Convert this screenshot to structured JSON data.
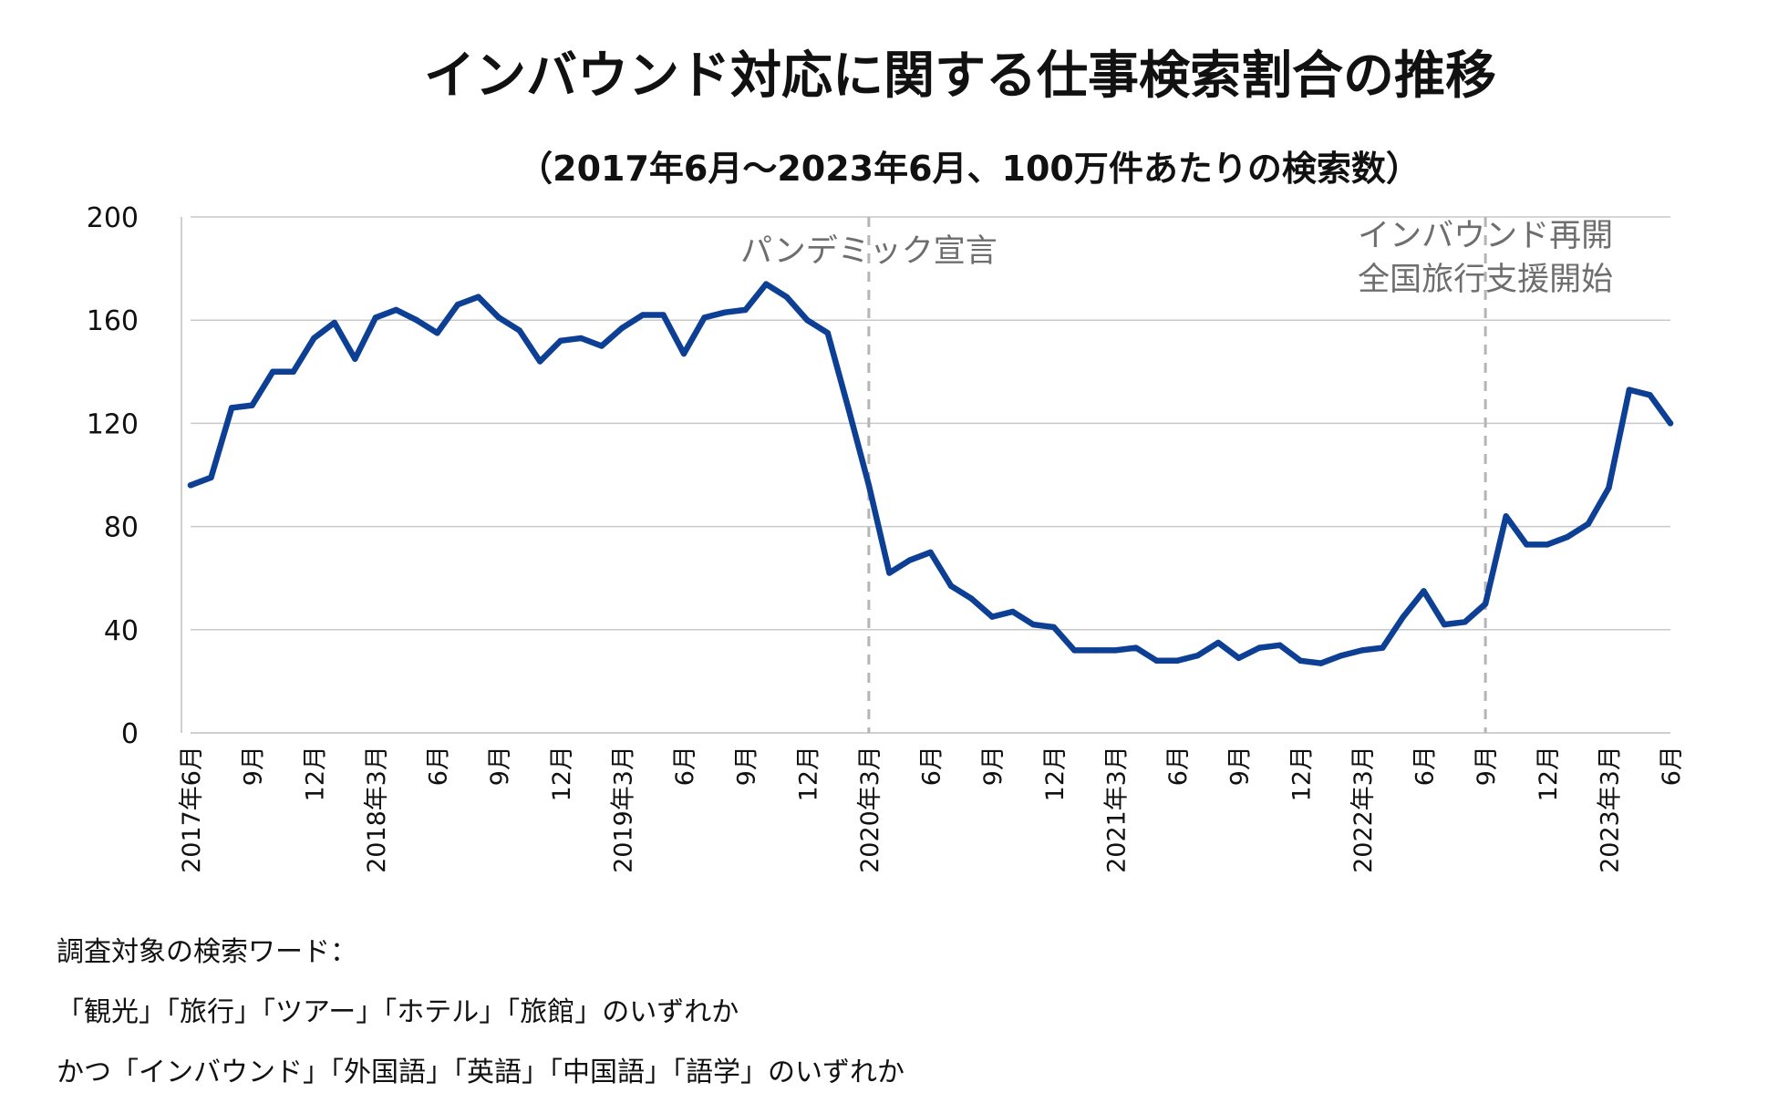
{
  "chart_data": {
    "type": "line",
    "title": "インバウンド対応に関する仕事検索割合の推移",
    "subtitle": "（2017年6月～2023年6月、100万件あたりの検索数）",
    "ylim": [
      0,
      200
    ],
    "yticks": [
      "0",
      "40",
      "80",
      "120",
      "160",
      "200"
    ],
    "grid": true,
    "x": [
      "2017-06",
      "2017-07",
      "2017-08",
      "2017-09",
      "2017-10",
      "2017-11",
      "2017-12",
      "2018-01",
      "2018-02",
      "2018-03",
      "2018-04",
      "2018-05",
      "2018-06",
      "2018-07",
      "2018-08",
      "2018-09",
      "2018-10",
      "2018-11",
      "2018-12",
      "2019-01",
      "2019-02",
      "2019-03",
      "2019-04",
      "2019-05",
      "2019-06",
      "2019-07",
      "2019-08",
      "2019-09",
      "2019-10",
      "2019-11",
      "2019-12",
      "2020-01",
      "2020-02",
      "2020-03",
      "2020-04",
      "2020-05",
      "2020-06",
      "2020-07",
      "2020-08",
      "2020-09",
      "2020-10",
      "2020-11",
      "2020-12",
      "2021-01",
      "2021-02",
      "2021-03",
      "2021-04",
      "2021-05",
      "2021-06",
      "2021-07",
      "2021-08",
      "2021-09",
      "2021-10",
      "2021-11",
      "2021-12",
      "2022-01",
      "2022-02",
      "2022-03",
      "2022-04",
      "2022-05",
      "2022-06",
      "2022-07",
      "2022-08",
      "2022-09",
      "2022-10",
      "2022-11",
      "2022-12",
      "2023-01",
      "2023-02",
      "2023-03",
      "2023-04",
      "2023-05",
      "2023-06"
    ],
    "series": [
      {
        "name": "100万件あたりの検索数",
        "color": "#0d3f94",
        "values": [
          96,
          99,
          126,
          127,
          140,
          140,
          153,
          159,
          145,
          161,
          164,
          160,
          155,
          166,
          169,
          161,
          156,
          144,
          152,
          153,
          150,
          157,
          162,
          162,
          147,
          161,
          163,
          164,
          174,
          169,
          160,
          155,
          126,
          96,
          62,
          67,
          70,
          57,
          52,
          45,
          47,
          42,
          41,
          32,
          32,
          32,
          33,
          28,
          28,
          30,
          35,
          29,
          33,
          34,
          28,
          27,
          30,
          32,
          33,
          45,
          55,
          42,
          43,
          50,
          84,
          73,
          73,
          76,
          81,
          95,
          133,
          131,
          120
        ]
      }
    ],
    "xtick_labels": [
      {
        "index": 0,
        "label": "2017年6月"
      },
      {
        "index": 3,
        "label": "9月"
      },
      {
        "index": 6,
        "label": "12月"
      },
      {
        "index": 9,
        "label": "2018年3月"
      },
      {
        "index": 12,
        "label": "6月"
      },
      {
        "index": 15,
        "label": "9月"
      },
      {
        "index": 18,
        "label": "12月"
      },
      {
        "index": 21,
        "label": "2019年3月"
      },
      {
        "index": 24,
        "label": "6月"
      },
      {
        "index": 27,
        "label": "9月"
      },
      {
        "index": 30,
        "label": "12月"
      },
      {
        "index": 33,
        "label": "2020年3月"
      },
      {
        "index": 36,
        "label": "6月"
      },
      {
        "index": 39,
        "label": "9月"
      },
      {
        "index": 42,
        "label": "12月"
      },
      {
        "index": 45,
        "label": "2021年3月"
      },
      {
        "index": 48,
        "label": "6月"
      },
      {
        "index": 51,
        "label": "9月"
      },
      {
        "index": 54,
        "label": "12月"
      },
      {
        "index": 57,
        "label": "2022年3月"
      },
      {
        "index": 60,
        "label": "6月"
      },
      {
        "index": 63,
        "label": "9月"
      },
      {
        "index": 66,
        "label": "12月"
      },
      {
        "index": 69,
        "label": "2023年3月"
      },
      {
        "index": 72,
        "label": "6月"
      }
    ],
    "annotations": [
      {
        "at": "2020-03",
        "lines": [
          "パンデミック宣言"
        ]
      },
      {
        "at": "2022-09",
        "lines": [
          "インバウンド再開",
          "全国旅行支援開始"
        ]
      }
    ]
  },
  "notes": {
    "line1": "調査対象の検索ワード：",
    "line2": "「観光」「旅行」「ツアー」「ホテル」「旅館」のいずれか",
    "line3": "かつ「インバウンド」「外国語」「英語」「中国語」「語学」のいずれか"
  }
}
